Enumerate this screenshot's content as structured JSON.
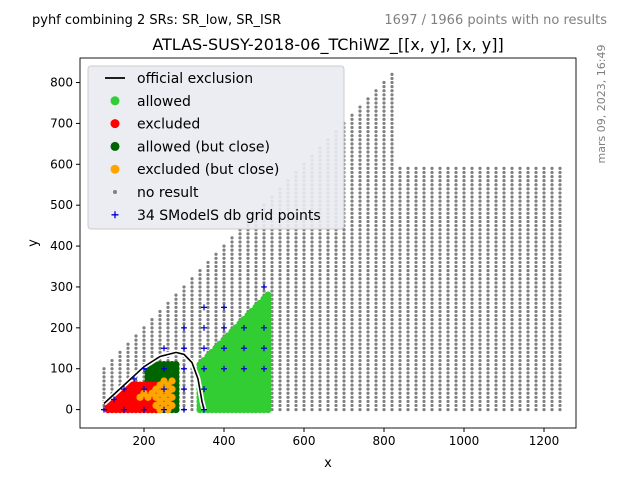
{
  "header": {
    "left_note": "pyhf combining 2 SRs: SR_low, SR_ISR",
    "right_note": "1697 / 1966 points with no results",
    "side_note": "mars 09, 2023, 16:49"
  },
  "chart_data": {
    "type": "scatter",
    "title": "ATLAS-SUSY-2018-06_TChiWZ_[[x, y], [x, y]]",
    "xlabel": "x",
    "ylabel": "y",
    "xlim": [
      40,
      1280
    ],
    "ylim": [
      -45,
      860
    ],
    "x_ticks": [
      200,
      400,
      600,
      800,
      1000,
      1200
    ],
    "y_ticks": [
      0,
      100,
      200,
      300,
      400,
      500,
      600,
      700,
      800
    ],
    "grid": false,
    "legend_position": "top-left",
    "legend": [
      {
        "label": "official exclusion",
        "kind": "line",
        "color": "#000000"
      },
      {
        "label": "allowed",
        "kind": "dot",
        "color": "#32cd32"
      },
      {
        "label": "excluded",
        "kind": "dot",
        "color": "#ff0000"
      },
      {
        "label": "allowed (but close)",
        "kind": "dot",
        "color": "#006400"
      },
      {
        "label": "excluded (but close)",
        "kind": "dot",
        "color": "#ffa500"
      },
      {
        "label": "no result",
        "kind": "small-dot",
        "color": "#808080"
      },
      {
        "label": "34 SModelS db grid points",
        "kind": "plus",
        "color": "#0000cd"
      }
    ],
    "no_result_region": {
      "x_range": [
        100,
        1240
      ],
      "step": 20,
      "lower_y": 0,
      "upper_boundary": [
        [
          100,
          100
        ],
        [
          820,
          820
        ],
        [
          840,
          590
        ],
        [
          1240,
          590
        ]
      ],
      "top_gap": [
        [
          810,
          820
        ]
      ]
    },
    "allowed_region": {
      "x_range": [
        280,
        510
      ],
      "y_range": [
        20,
        300
      ],
      "step": 10,
      "diag_from": [
        230,
        0
      ]
    },
    "excluded_region": {
      "x": [
        110,
        240
      ],
      "y": [
        0,
        60
      ]
    },
    "allowed_close_region": {
      "x": [
        210,
        280
      ],
      "y": [
        0,
        110
      ]
    },
    "excluded_close_region": {
      "x": [
        180,
        270
      ],
      "y": [
        0,
        70
      ]
    },
    "official_exclusion": [
      [
        100,
        15
      ],
      [
        150,
        60
      ],
      [
        200,
        105
      ],
      [
        240,
        130
      ],
      [
        280,
        140
      ],
      [
        300,
        135
      ],
      [
        320,
        115
      ],
      [
        335,
        75
      ],
      [
        345,
        20
      ],
      [
        350,
        0
      ]
    ],
    "grid_points": [
      [
        100,
        0
      ],
      [
        125,
        25
      ],
      [
        150,
        50
      ],
      [
        175,
        75
      ],
      [
        200,
        100
      ],
      [
        150,
        0
      ],
      [
        200,
        0
      ],
      [
        250,
        0
      ],
      [
        300,
        0
      ],
      [
        350,
        0
      ],
      [
        200,
        50
      ],
      [
        250,
        50
      ],
      [
        300,
        50
      ],
      [
        350,
        50
      ],
      [
        250,
        100
      ],
      [
        300,
        100
      ],
      [
        350,
        100
      ],
      [
        400,
        100
      ],
      [
        450,
        100
      ],
      [
        500,
        100
      ],
      [
        250,
        150
      ],
      [
        300,
        150
      ],
      [
        350,
        150
      ],
      [
        400,
        150
      ],
      [
        450,
        150
      ],
      [
        500,
        150
      ],
      [
        300,
        200
      ],
      [
        350,
        200
      ],
      [
        400,
        200
      ],
      [
        450,
        200
      ],
      [
        500,
        200
      ],
      [
        350,
        250
      ],
      [
        400,
        250
      ],
      [
        500,
        300
      ]
    ],
    "colors": {
      "allowed": "#32cd32",
      "excluded": "#ff0000",
      "allowed_close": "#006400",
      "excluded_close": "#ffa500",
      "no_result": "#808080",
      "grid_point": "#0000cd",
      "legend_bg": "#eaeaf2"
    }
  }
}
